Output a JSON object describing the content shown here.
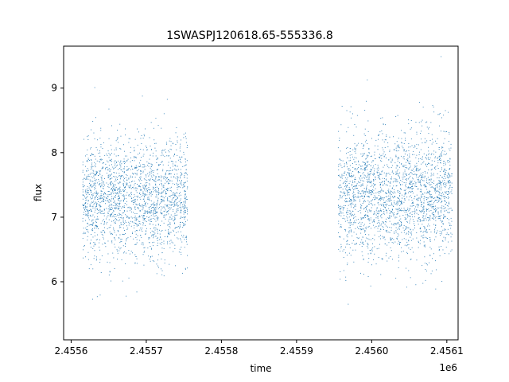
{
  "chart_data": {
    "type": "scatter",
    "title": "1SWASPJ120618.65-555336.8",
    "xlabel": "time",
    "ylabel": "flux",
    "x_offset_label": "1e6",
    "x_ticks": [
      2.4556,
      2.4557,
      2.4558,
      2.4559,
      2.456,
      2.4561
    ],
    "x_tick_labels": [
      "2.4556",
      "2.4557",
      "2.4558",
      "2.4559",
      "2.4560",
      "2.4561"
    ],
    "y_ticks": [
      6,
      7,
      8,
      9
    ],
    "y_tick_labels": [
      "6",
      "7",
      "8",
      "9"
    ],
    "xlim": [
      2455590,
      2456115
    ],
    "ylim": [
      5.1,
      9.65
    ],
    "grid": false,
    "marker_color": "#1f77b4",
    "series": [
      {
        "name": "",
        "description_segments": [
          {
            "x_start": 2455615,
            "x_end": 2455755,
            "y_center": 7.3,
            "y_spread": 0.45
          },
          {
            "x_start": 2455955,
            "x_end": 2456107,
            "y_center": 7.35,
            "y_spread": 0.5
          }
        ],
        "x": [
          2455615,
          2455625,
          2455640,
          2455655,
          2455665,
          2455680,
          2455690,
          2455700,
          2455712,
          2455722,
          2455735,
          2455750,
          2455958,
          2455970,
          2455985,
          2456000,
          2456012,
          2456025,
          2456040,
          2456052,
          2456065,
          2456078,
          2456090,
          2456105
        ],
        "y": [
          7.2,
          7.5,
          7.1,
          7.4,
          7.6,
          7.3,
          7.2,
          7.5,
          7.1,
          7.4,
          7.3,
          7.2,
          7.4,
          7.3,
          7.2,
          7.5,
          7.1,
          7.6,
          7.3,
          7.4,
          7.5,
          7.2,
          7.3,
          7.4
        ]
      }
    ]
  }
}
